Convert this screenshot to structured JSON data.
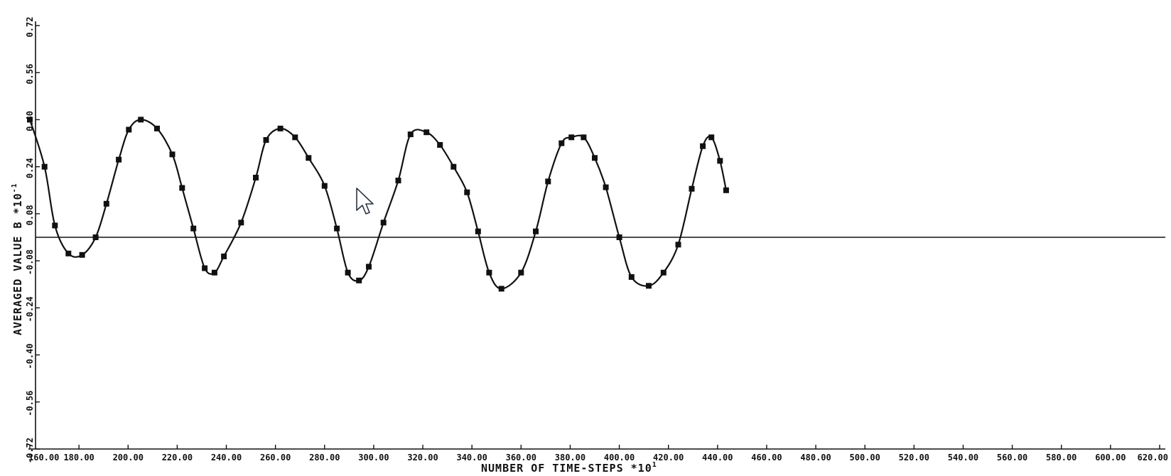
{
  "chart_data": {
    "type": "line",
    "title": "",
    "xlabel": "NUMBER OF TIME-STEPS  *10",
    "xlabel_exponent": "1",
    "ylabel": "AVERAGED VALUE B  *10",
    "ylabel_exponent": "-1",
    "xlim": [
      160,
      620
    ],
    "ylim": [
      -0.72,
      0.72
    ],
    "xticks": [
      160,
      180,
      200,
      220,
      240,
      260,
      280,
      300,
      320,
      340,
      360,
      380,
      400,
      420,
      440,
      460,
      480,
      500,
      520,
      540,
      560,
      580,
      600,
      620
    ],
    "xtick_labels": [
      "160.00",
      "180.00",
      "200.00",
      "220.00",
      "240.00",
      "260.00",
      "280.00",
      "300.00",
      "320.00",
      "340.00",
      "360.00",
      "380.00",
      "400.00",
      "420.00",
      "440.00",
      "460.00",
      "480.00",
      "500.00",
      "520.00",
      "540.00",
      "560.00",
      "580.00",
      "600.00",
      "620.00"
    ],
    "yticks": [
      -0.72,
      -0.56,
      -0.4,
      -0.24,
      -0.08,
      0.08,
      0.24,
      0.4,
      0.56,
      0.72
    ],
    "ytick_labels": [
      "-0.72",
      "-0.56",
      "-0.40",
      "-0.24",
      "-0.08",
      "0.08",
      "0.24",
      "0.40",
      "0.56",
      "0.72"
    ],
    "reference_line": {
      "y": 0.0
    },
    "grid": false,
    "series": [
      {
        "x": [
          160.0,
          166.0,
          170.2,
          175.7,
          181.3,
          186.8,
          191.2,
          196.2,
          200.3,
          205.2,
          211.8,
          218.0,
          222.0,
          226.6,
          231.2,
          235.2,
          239.0,
          246.0,
          252.0,
          256.2,
          262.0,
          268.0,
          273.5,
          280.0,
          285.0,
          289.5,
          294.0,
          298.0,
          304.0,
          310.0,
          315.0,
          321.5,
          327.0,
          332.5,
          338.0,
          342.5,
          347.0,
          352.0,
          360.0,
          366.0,
          371.0,
          376.5,
          380.5,
          385.5,
          390.0,
          394.5,
          400.0,
          405.0,
          412.0,
          418.0,
          424.0,
          429.5,
          434.0,
          437.5,
          441.0,
          443.5
        ],
        "y": [
          0.4,
          0.24,
          0.04,
          -0.055,
          -0.06,
          0.0,
          0.114,
          0.264,
          0.366,
          0.4,
          0.37,
          0.282,
          0.168,
          0.03,
          -0.105,
          -0.12,
          -0.065,
          0.05,
          0.203,
          0.331,
          0.37,
          0.34,
          0.27,
          0.175,
          0.03,
          -0.12,
          -0.147,
          -0.1,
          0.05,
          0.193,
          0.35,
          0.357,
          0.314,
          0.24,
          0.153,
          0.02,
          -0.12,
          -0.175,
          -0.12,
          0.02,
          0.19,
          0.32,
          0.34,
          0.34,
          0.27,
          0.17,
          0.0,
          -0.135,
          -0.165,
          -0.12,
          -0.025,
          0.165,
          0.31,
          0.34,
          0.26,
          0.16
        ]
      }
    ]
  }
}
